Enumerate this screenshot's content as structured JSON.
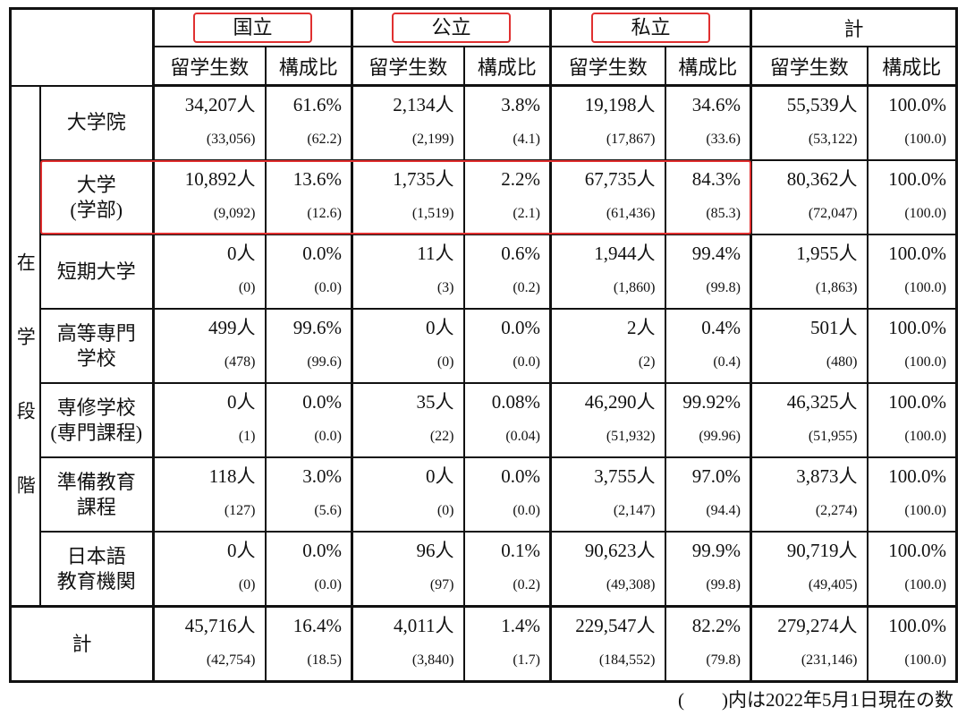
{
  "header": {
    "groups": [
      "国立",
      "公立",
      "私立",
      "計"
    ],
    "subheaders": [
      "留学生数",
      "構成比",
      "留学生数",
      "構成比",
      "留学生数",
      "構成比",
      "留学生数",
      "構成比"
    ]
  },
  "side_label": "在学段階",
  "rows": [
    {
      "label": [
        "大学院"
      ],
      "cells": [
        {
          "value": "34,207人",
          "prev": "(33,056)"
        },
        {
          "value": "61.6%",
          "prev": "(62.2)"
        },
        {
          "value": "2,134人",
          "prev": "(2,199)"
        },
        {
          "value": "3.8%",
          "prev": "(4.1)"
        },
        {
          "value": "19,198人",
          "prev": "(17,867)"
        },
        {
          "value": "34.6%",
          "prev": "(33.6)"
        },
        {
          "value": "55,539人",
          "prev": "(53,122)"
        },
        {
          "value": "100.0%",
          "prev": "(100.0)"
        }
      ]
    },
    {
      "label": [
        "大学",
        "(学部)"
      ],
      "cells": [
        {
          "value": "10,892人",
          "prev": "(9,092)"
        },
        {
          "value": "13.6%",
          "prev": "(12.6)"
        },
        {
          "value": "1,735人",
          "prev": "(1,519)"
        },
        {
          "value": "2.2%",
          "prev": "(2.1)"
        },
        {
          "value": "67,735人",
          "prev": "(61,436)"
        },
        {
          "value": "84.3%",
          "prev": "(85.3)"
        },
        {
          "value": "80,362人",
          "prev": "(72,047)"
        },
        {
          "value": "100.0%",
          "prev": "(100.0)"
        }
      ]
    },
    {
      "label": [
        "短期大学"
      ],
      "cells": [
        {
          "value": "0人",
          "prev": "(0)"
        },
        {
          "value": "0.0%",
          "prev": "(0.0)"
        },
        {
          "value": "11人",
          "prev": "(3)"
        },
        {
          "value": "0.6%",
          "prev": "(0.2)"
        },
        {
          "value": "1,944人",
          "prev": "(1,860)"
        },
        {
          "value": "99.4%",
          "prev": "(99.8)"
        },
        {
          "value": "1,955人",
          "prev": "(1,863)"
        },
        {
          "value": "100.0%",
          "prev": "(100.0)"
        }
      ]
    },
    {
      "label": [
        "高等専門",
        "学校"
      ],
      "cells": [
        {
          "value": "499人",
          "prev": "(478)"
        },
        {
          "value": "99.6%",
          "prev": "(99.6)"
        },
        {
          "value": "0人",
          "prev": "(0)"
        },
        {
          "value": "0.0%",
          "prev": "(0.0)"
        },
        {
          "value": "2人",
          "prev": "(2)"
        },
        {
          "value": "0.4%",
          "prev": "(0.4)"
        },
        {
          "value": "501人",
          "prev": "(480)"
        },
        {
          "value": "100.0%",
          "prev": "(100.0)"
        }
      ]
    },
    {
      "label": [
        "専修学校",
        "(専門課程)"
      ],
      "cells": [
        {
          "value": "0人",
          "prev": "(1)"
        },
        {
          "value": "0.0%",
          "prev": "(0.0)"
        },
        {
          "value": "35人",
          "prev": "(22)"
        },
        {
          "value": "0.08%",
          "prev": "(0.04)"
        },
        {
          "value": "46,290人",
          "prev": "(51,932)"
        },
        {
          "value": "99.92%",
          "prev": "(99.96)"
        },
        {
          "value": "46,325人",
          "prev": "(51,955)"
        },
        {
          "value": "100.0%",
          "prev": "(100.0)"
        }
      ]
    },
    {
      "label": [
        "準備教育",
        "課程"
      ],
      "cells": [
        {
          "value": "118人",
          "prev": "(127)"
        },
        {
          "value": "3.0%",
          "prev": "(5.6)"
        },
        {
          "value": "0人",
          "prev": "(0)"
        },
        {
          "value": "0.0%",
          "prev": "(0.0)"
        },
        {
          "value": "3,755人",
          "prev": "(2,147)"
        },
        {
          "value": "97.0%",
          "prev": "(94.4)"
        },
        {
          "value": "3,873人",
          "prev": "(2,274)"
        },
        {
          "value": "100.0%",
          "prev": "(100.0)"
        }
      ]
    },
    {
      "label": [
        "日本語",
        "教育機関"
      ],
      "cells": [
        {
          "value": "0人",
          "prev": "(0)"
        },
        {
          "value": "0.0%",
          "prev": "(0.0)"
        },
        {
          "value": "96人",
          "prev": "(97)"
        },
        {
          "value": "0.1%",
          "prev": "(0.2)"
        },
        {
          "value": "90,623人",
          "prev": "(49,308)"
        },
        {
          "value": "99.9%",
          "prev": "(99.8)"
        },
        {
          "value": "90,719人",
          "prev": "(49,405)"
        },
        {
          "value": "100.0%",
          "prev": "(100.0)"
        }
      ]
    },
    {
      "label": [
        "計"
      ],
      "cells": [
        {
          "value": "45,716人",
          "prev": "(42,754)"
        },
        {
          "value": "16.4%",
          "prev": "(18.5)"
        },
        {
          "value": "4,011人",
          "prev": "(3,840)"
        },
        {
          "value": "1.4%",
          "prev": "(1.7)"
        },
        {
          "value": "229,547人",
          "prev": "(184,552)"
        },
        {
          "value": "82.2%",
          "prev": "(79.8)"
        },
        {
          "value": "279,274人",
          "prev": "(231,146)"
        },
        {
          "value": "100.0%",
          "prev": "(100.0)"
        }
      ]
    }
  ],
  "footnote": "(　　)内は2022年5月1日現在の数"
}
